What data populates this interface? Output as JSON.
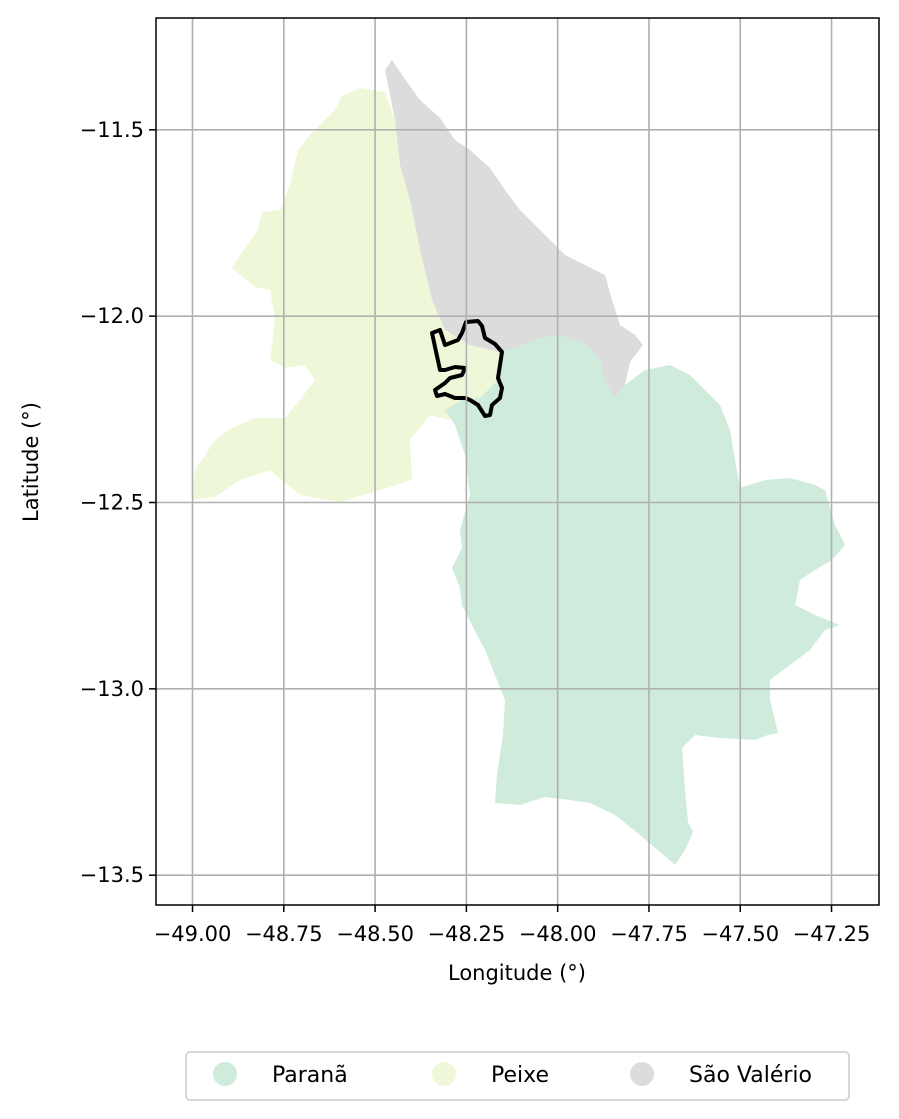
{
  "map": {
    "xlabel": "Longitude (°)",
    "ylabel": "Latitude (°)",
    "x_ticks": [
      "−49.00",
      "−48.75",
      "−48.50",
      "−48.25",
      "−48.00",
      "−47.75",
      "−47.50",
      "−47.25"
    ],
    "y_ticks": [
      "−11.5",
      "−12.0",
      "−12.5",
      "−13.0",
      "−13.5"
    ],
    "x_tick_values": [
      -49.0,
      -48.75,
      -48.5,
      -48.25,
      -48.0,
      -47.75,
      -47.5,
      -47.25
    ],
    "y_tick_values": [
      -11.5,
      -12.0,
      -12.5,
      -13.0,
      -13.5
    ],
    "xlim": [
      -49.1,
      -47.12
    ],
    "ylim": [
      -13.58,
      -11.2
    ],
    "grid": true,
    "regions": [
      {
        "name": "Paranã",
        "color": "#cfebdc"
      },
      {
        "name": "Peixe",
        "color": "#eef8d8"
      },
      {
        "name": "São Valério",
        "color": "#dcdcdc"
      }
    ],
    "highlight_outline_color": "#000000",
    "legend_placement": "bottom-center"
  }
}
